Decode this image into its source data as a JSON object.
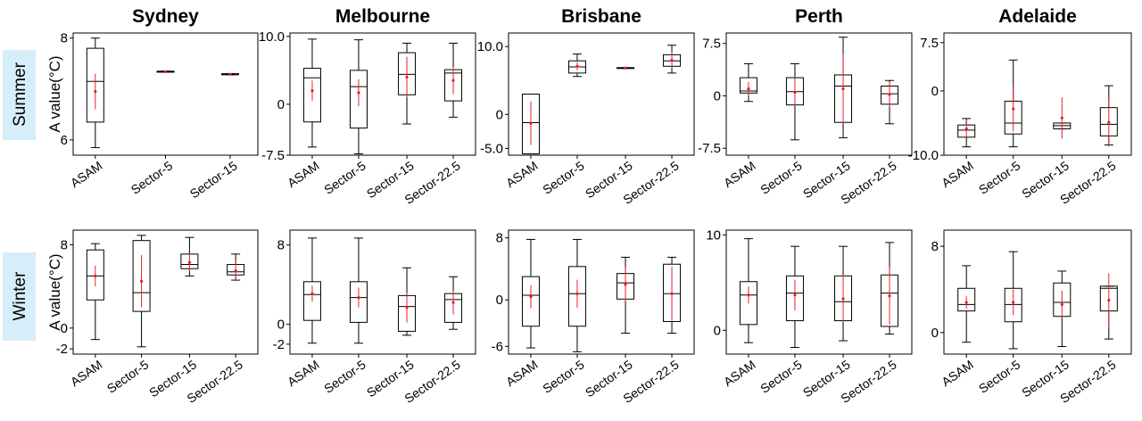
{
  "seasons": [
    "Summer",
    "Winter"
  ],
  "chart_data": [
    {
      "type": "box",
      "title": "Sydney",
      "season": "Summer",
      "ylabel": "A value(°C)",
      "ylim": [
        5.7,
        8.1
      ],
      "yticks": [
        8,
        6
      ],
      "ytick_labels": [
        "8",
        "6"
      ],
      "categories": [
        "ASAM",
        "Sector-5",
        "Sector-15"
      ],
      "boxes": [
        {
          "category": "ASAM",
          "whisker_low": 5.85,
          "q1": 6.35,
          "median": 7.15,
          "q3": 7.8,
          "whisker_high": 8.0,
          "mean": 6.95,
          "mean_err": 0.35
        },
        {
          "category": "Sector-5",
          "whisker_low": 7.33,
          "q1": 7.33,
          "median": 7.34,
          "q3": 7.35,
          "whisker_high": 7.35,
          "mean": 7.34,
          "mean_err": 0.0
        },
        {
          "category": "Sector-15",
          "whisker_low": 7.28,
          "q1": 7.28,
          "median": 7.29,
          "q3": 7.3,
          "whisker_high": 7.3,
          "mean": 7.29,
          "mean_err": 0.0
        }
      ]
    },
    {
      "type": "box",
      "title": "Melbourne",
      "season": "Summer",
      "ylim": [
        -7.5,
        10.5
      ],
      "yticks": [
        10,
        0,
        -7.5
      ],
      "ytick_labels": [
        "10.0",
        "0",
        "-7.5"
      ],
      "categories": [
        "ASAM",
        "Sector-5",
        "Sector-15",
        "Sector-22.5"
      ],
      "boxes": [
        {
          "category": "ASAM",
          "whisker_low": -6.3,
          "q1": -2.6,
          "median": 3.9,
          "q3": 5.3,
          "whisker_high": 9.6,
          "mean": 2.0,
          "mean_err": 1.5
        },
        {
          "category": "Sector-5",
          "whisker_low": -7.3,
          "q1": -3.5,
          "median": 2.6,
          "q3": 5.0,
          "whisker_high": 9.5,
          "mean": 1.7,
          "mean_err": 2.0
        },
        {
          "category": "Sector-15",
          "whisker_low": -2.9,
          "q1": 1.4,
          "median": 4.4,
          "q3": 7.6,
          "whisker_high": 9.0,
          "mean": 4.0,
          "mean_err": 3.0
        },
        {
          "category": "Sector-22.5",
          "whisker_low": -1.9,
          "q1": 0.5,
          "median": 4.6,
          "q3": 5.1,
          "whisker_high": 9.0,
          "mean": 3.5,
          "mean_err": 2.0
        }
      ]
    },
    {
      "type": "box",
      "title": "Brisbane",
      "season": "Summer",
      "ylim": [
        -6,
        12
      ],
      "yticks": [
        10,
        0,
        -5
      ],
      "ytick_labels": [
        "10.0",
        "0",
        "-5.0"
      ],
      "categories": [
        "ASAM",
        "Sector-5",
        "Sector-15",
        "Sector-22.5"
      ],
      "boxes": [
        {
          "category": "ASAM",
          "whisker_low": -5.8,
          "q1": -5.8,
          "median": -1.2,
          "q3": 3.0,
          "whisker_high": 3.0,
          "mean": -1.3,
          "mean_err": 3.2
        },
        {
          "category": "Sector-5",
          "whisker_low": 5.6,
          "q1": 6.1,
          "median": 7.0,
          "q3": 7.9,
          "whisker_high": 8.9,
          "mean": 7.1,
          "mean_err": 0.6
        },
        {
          "category": "Sector-15",
          "whisker_low": 6.8,
          "q1": 6.8,
          "median": 6.85,
          "q3": 6.9,
          "whisker_high": 6.9,
          "mean": 6.85,
          "mean_err": 0.0
        },
        {
          "category": "Sector-22.5",
          "whisker_low": 6.1,
          "q1": 7.1,
          "median": 7.9,
          "q3": 8.8,
          "whisker_high": 10.2,
          "mean": 8.0,
          "mean_err": 1.2
        }
      ]
    },
    {
      "type": "box",
      "title": "Perth",
      "season": "Summer",
      "ylim": [
        -8.5,
        9.0
      ],
      "yticks": [
        7.5,
        0,
        -7.5
      ],
      "ytick_labels": [
        "7.5",
        "0",
        "-7.5"
      ],
      "categories": [
        "ASAM",
        "Sector-5",
        "Sector-15",
        "Sector-22.5"
      ],
      "boxes": [
        {
          "category": "ASAM",
          "whisker_low": -0.8,
          "q1": 0.4,
          "median": 0.7,
          "q3": 2.6,
          "whisker_high": 4.6,
          "mean": 1.0,
          "mean_err": 1.0
        },
        {
          "category": "Sector-5",
          "whisker_low": -6.3,
          "q1": -1.3,
          "median": 0.6,
          "q3": 2.6,
          "whisker_high": 4.6,
          "mean": 0.5,
          "mean_err": 2.0
        },
        {
          "category": "Sector-15",
          "whisker_low": -6.0,
          "q1": -3.8,
          "median": 1.4,
          "q3": 3.0,
          "whisker_high": 8.4,
          "mean": 1.0,
          "mean_err": 5.0
        },
        {
          "category": "Sector-22.5",
          "whisker_low": -4.0,
          "q1": -1.2,
          "median": 0.3,
          "q3": 1.4,
          "whisker_high": 2.2,
          "mean": 0.2,
          "mean_err": 1.8
        }
      ]
    },
    {
      "type": "box",
      "title": "Adelaide",
      "season": "Summer",
      "ylim": [
        -10,
        9
      ],
      "yticks": [
        7.5,
        0,
        -10
      ],
      "ytick_labels": [
        "7.5",
        "0",
        "-10.0"
      ],
      "categories": [
        "ASAM",
        "Sector-5",
        "Sector-15",
        "Sector-22.5"
      ],
      "boxes": [
        {
          "category": "ASAM",
          "whisker_low": -8.7,
          "q1": -7.2,
          "median": -6.1,
          "q3": -5.3,
          "whisker_high": -4.3,
          "mean": -5.9,
          "mean_err": 1.3
        },
        {
          "category": "Sector-5",
          "whisker_low": -8.7,
          "q1": -6.7,
          "median": -5.0,
          "q3": -1.6,
          "whisker_high": 4.8,
          "mean": -2.8,
          "mean_err": 3.5
        },
        {
          "category": "Sector-15",
          "whisker_low": -5.9,
          "q1": -5.9,
          "median": -5.4,
          "q3": -5.0,
          "whisker_high": -5.0,
          "mean": -4.2,
          "mean_err": 3.2
        },
        {
          "category": "Sector-22.5",
          "whisker_low": -8.4,
          "q1": -7.0,
          "median": -5.2,
          "q3": -2.6,
          "whisker_high": 0.8,
          "mean": -4.9,
          "mean_err": 3.8
        }
      ]
    },
    {
      "type": "box",
      "title": "Sydney",
      "season": "Winter",
      "ylabel": "A value(°C)",
      "ylim": [
        -2.5,
        9.4
      ],
      "yticks": [
        8,
        0,
        -2
      ],
      "ytick_labels": [
        "8",
        "0",
        "-2"
      ],
      "categories": [
        "ASAM",
        "Sector-5",
        "Sector-15",
        "Sector-22.5"
      ],
      "boxes": [
        {
          "category": "ASAM",
          "whisker_low": -1.1,
          "q1": 2.7,
          "median": 5.0,
          "q3": 7.5,
          "whisker_high": 8.1,
          "mean": 5.0,
          "mean_err": 1.0
        },
        {
          "category": "Sector-5",
          "whisker_low": -1.8,
          "q1": 1.6,
          "median": 3.4,
          "q3": 8.4,
          "whisker_high": 8.9,
          "mean": 4.5,
          "mean_err": 2.5
        },
        {
          "category": "Sector-15",
          "whisker_low": 5.0,
          "q1": 5.7,
          "median": 6.1,
          "q3": 7.1,
          "whisker_high": 8.7,
          "mean": 6.3,
          "mean_err": 0.9
        },
        {
          "category": "Sector-22.5",
          "whisker_low": 4.6,
          "q1": 5.1,
          "median": 5.4,
          "q3": 6.1,
          "whisker_high": 7.1,
          "mean": 5.5,
          "mean_err": 1.0
        }
      ]
    },
    {
      "type": "box",
      "title": "Melbourne",
      "season": "Winter",
      "ylim": [
        -3,
        9.5
      ],
      "yticks": [
        8,
        0,
        -2
      ],
      "ytick_labels": [
        "8",
        "0",
        "-2"
      ],
      "categories": [
        "ASAM",
        "Sector-5",
        "Sector-15",
        "Sector-22.5"
      ],
      "boxes": [
        {
          "category": "ASAM",
          "whisker_low": -1.9,
          "q1": 0.4,
          "median": 3.0,
          "q3": 4.3,
          "whisker_high": 8.7,
          "mean": 3.1,
          "mean_err": 0.8
        },
        {
          "category": "Sector-5",
          "whisker_low": -1.9,
          "q1": 0.2,
          "median": 2.7,
          "q3": 4.3,
          "whisker_high": 8.7,
          "mean": 2.7,
          "mean_err": 1.0
        },
        {
          "category": "Sector-15",
          "whisker_low": -1.1,
          "q1": -0.7,
          "median": 1.8,
          "q3": 2.9,
          "whisker_high": 5.7,
          "mean": 1.7,
          "mean_err": 1.5
        },
        {
          "category": "Sector-22.5",
          "whisker_low": -0.5,
          "q1": 0.2,
          "median": 2.5,
          "q3": 3.1,
          "whisker_high": 4.8,
          "mean": 2.2,
          "mean_err": 1.2
        }
      ]
    },
    {
      "type": "box",
      "title": "Brisbane",
      "season": "Winter",
      "ylim": [
        -7,
        9
      ],
      "yticks": [
        8,
        0,
        -6
      ],
      "ytick_labels": [
        "8",
        "0",
        "-6"
      ],
      "categories": [
        "ASAM",
        "Sector-5",
        "Sector-15",
        "Sector-22.5"
      ],
      "boxes": [
        {
          "category": "ASAM",
          "whisker_low": -6.2,
          "q1": -3.4,
          "median": 0.6,
          "q3": 3.0,
          "whisker_high": 7.8,
          "mean": 0.4,
          "mean_err": 1.5
        },
        {
          "category": "Sector-5",
          "whisker_low": -6.7,
          "q1": -3.4,
          "median": 0.8,
          "q3": 4.3,
          "whisker_high": 7.8,
          "mean": 0.8,
          "mean_err": 1.8
        },
        {
          "category": "Sector-15",
          "whisker_low": -4.3,
          "q1": 0.1,
          "median": 2.2,
          "q3": 3.4,
          "whisker_high": 5.5,
          "mean": 2.0,
          "mean_err": 2.2
        },
        {
          "category": "Sector-22.5",
          "whisker_low": -4.3,
          "q1": -2.8,
          "median": 0.8,
          "q3": 4.6,
          "whisker_high": 5.5,
          "mean": 0.8,
          "mean_err": 3.5
        }
      ]
    },
    {
      "type": "box",
      "title": "Perth",
      "season": "Winter",
      "ylim": [
        -2.5,
        10.5
      ],
      "yticks": [
        10,
        0
      ],
      "ytick_labels": [
        "10",
        "0"
      ],
      "categories": [
        "ASAM",
        "Sector-5",
        "Sector-15",
        "Sector-22.5"
      ],
      "boxes": [
        {
          "category": "ASAM",
          "whisker_low": -1.3,
          "q1": 0.6,
          "median": 3.7,
          "q3": 5.1,
          "whisker_high": 9.6,
          "mean": 3.7,
          "mean_err": 0.9
        },
        {
          "category": "Sector-5",
          "whisker_low": -1.8,
          "q1": 1.0,
          "median": 3.9,
          "q3": 5.7,
          "whisker_high": 8.8,
          "mean": 3.7,
          "mean_err": 1.6
        },
        {
          "category": "Sector-15",
          "whisker_low": -1.1,
          "q1": 1.0,
          "median": 3.0,
          "q3": 5.7,
          "whisker_high": 8.8,
          "mean": 3.3,
          "mean_err": 2.5
        },
        {
          "category": "Sector-22.5",
          "whisker_low": -0.4,
          "q1": 0.4,
          "median": 3.9,
          "q3": 5.8,
          "whisker_high": 9.2,
          "mean": 3.6,
          "mean_err": 3.0
        }
      ]
    },
    {
      "type": "box",
      "title": "Adelaide",
      "season": "Winter",
      "ylim": [
        -2,
        9.5
      ],
      "yticks": [
        8,
        0
      ],
      "ytick_labels": [
        "8",
        "0"
      ],
      "categories": [
        "ASAM",
        "Sector-5",
        "Sector-15",
        "Sector-22.5"
      ],
      "boxes": [
        {
          "category": "ASAM",
          "whisker_low": -0.9,
          "q1": 2.0,
          "median": 2.6,
          "q3": 4.1,
          "whisker_high": 6.2,
          "mean": 2.8,
          "mean_err": 0.6
        },
        {
          "category": "Sector-5",
          "whisker_low": -1.5,
          "q1": 1.0,
          "median": 2.6,
          "q3": 4.1,
          "whisker_high": 7.5,
          "mean": 2.8,
          "mean_err": 1.2
        },
        {
          "category": "Sector-15",
          "whisker_low": -1.3,
          "q1": 1.5,
          "median": 2.8,
          "q3": 4.6,
          "whisker_high": 5.7,
          "mean": 2.6,
          "mean_err": 1.3
        },
        {
          "category": "Sector-22.5",
          "whisker_low": -0.6,
          "q1": 2.0,
          "median": 4.1,
          "q3": 4.3,
          "whisker_high": 4.3,
          "mean": 3.0,
          "mean_err": 2.5
        }
      ]
    }
  ]
}
